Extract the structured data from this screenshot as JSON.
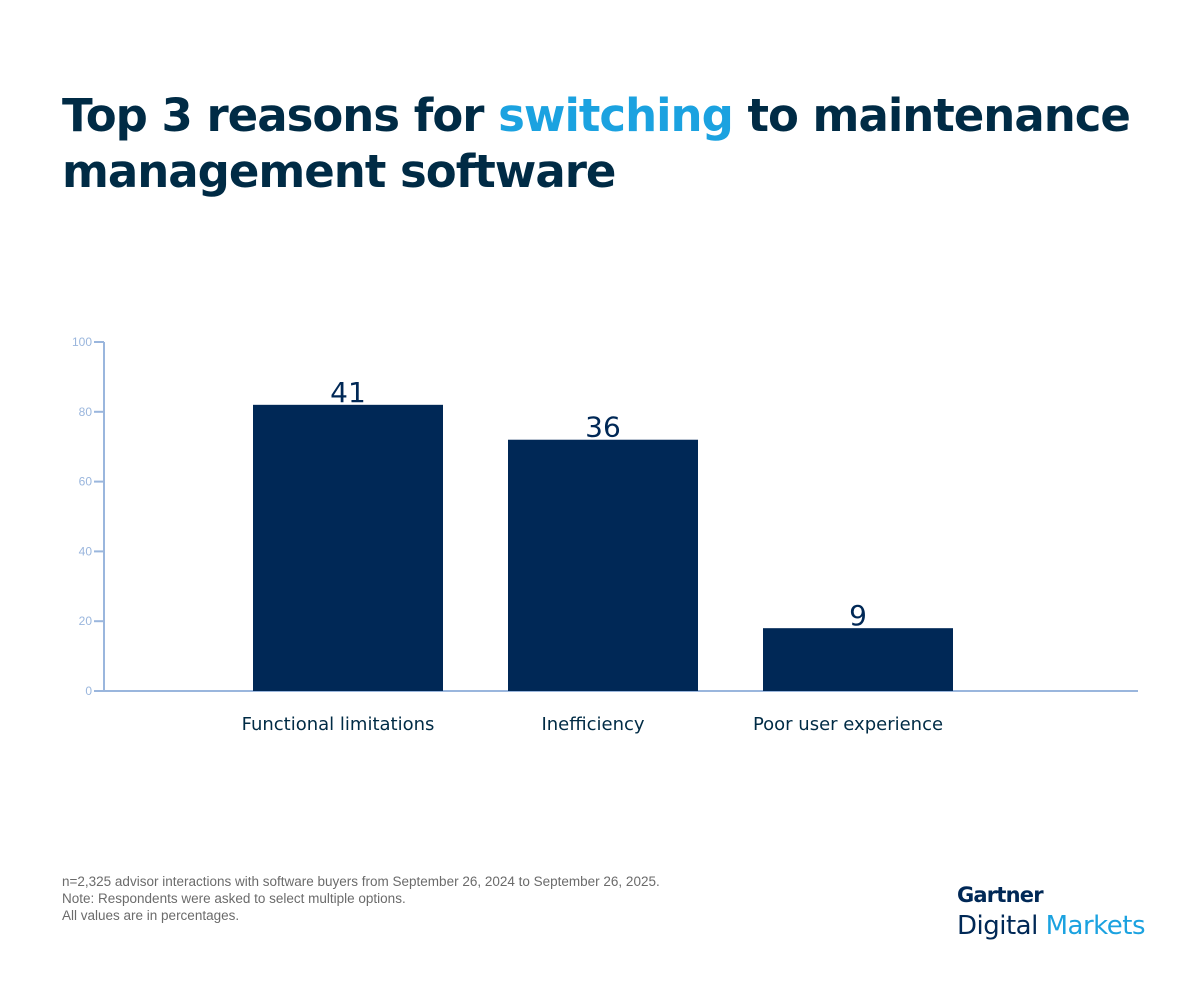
{
  "title": {
    "before": "Top 3 reasons for ",
    "highlight": "switching",
    "after": " to maintenance management software"
  },
  "colors": {
    "bar": "#002856",
    "axis": "#9ab6dd",
    "title": "#002b45",
    "highlight": "#1ba2e0"
  },
  "chart_data": {
    "type": "bar",
    "categories": [
      "Functional limitations",
      "Inefficiency",
      "Poor user experience"
    ],
    "values": [
      41,
      36,
      9
    ],
    "data_labels": [
      "41",
      "36",
      "9"
    ],
    "yticks": [
      "0",
      "20",
      "40",
      "60",
      "80",
      "100"
    ],
    "ylim": [
      0,
      100
    ],
    "title": "Top 3 reasons for switching to maintenance management software",
    "xlabel": "",
    "ylabel": "",
    "grid": false
  },
  "footnotes": [
    "n=2,325 advisor interactions with software buyers from September 26, 2024 to September 26, 2025.",
    "Note: Respondents were asked to select multiple options.",
    "All values are in percentages."
  ],
  "logo": {
    "brand": "Gartner",
    "line1": "Digital",
    "line2": "Markets"
  }
}
